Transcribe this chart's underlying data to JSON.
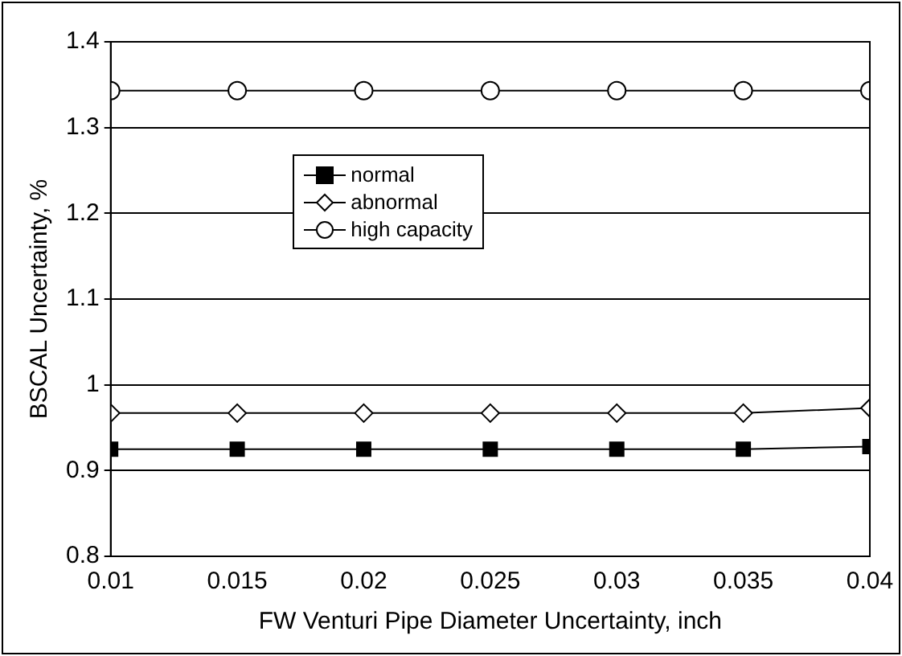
{
  "chart_data": {
    "type": "line",
    "xlabel": "FW Venturi Pipe Diameter Uncertainty, inch",
    "ylabel": "BSCAL Uncertainty, %",
    "x": [
      0.01,
      0.015,
      0.02,
      0.025,
      0.03,
      0.035,
      0.04
    ],
    "xlim": [
      0.01,
      0.04
    ],
    "xticks": [
      0.01,
      0.015,
      0.02,
      0.025,
      0.03,
      0.035,
      0.04
    ],
    "ylim": [
      0.8,
      1.4
    ],
    "yticks": [
      0.8,
      0.9,
      1,
      1.1,
      1.2,
      1.3,
      1.4
    ],
    "grid": "y",
    "legend": "top",
    "series": [
      {
        "name": "normal",
        "color": "#000000",
        "marker": "square",
        "values": [
          0.925,
          0.925,
          0.925,
          0.925,
          0.925,
          0.925,
          0.928
        ]
      },
      {
        "name": "abnormal",
        "color": "#000000",
        "marker": "diamond",
        "values": [
          0.967,
          0.967,
          0.967,
          0.967,
          0.967,
          0.967,
          0.973
        ]
      },
      {
        "name": "high capacity",
        "color": "#000000",
        "marker": "circle",
        "values": [
          1.343,
          1.343,
          1.343,
          1.343,
          1.343,
          1.343,
          1.343
        ]
      }
    ]
  }
}
